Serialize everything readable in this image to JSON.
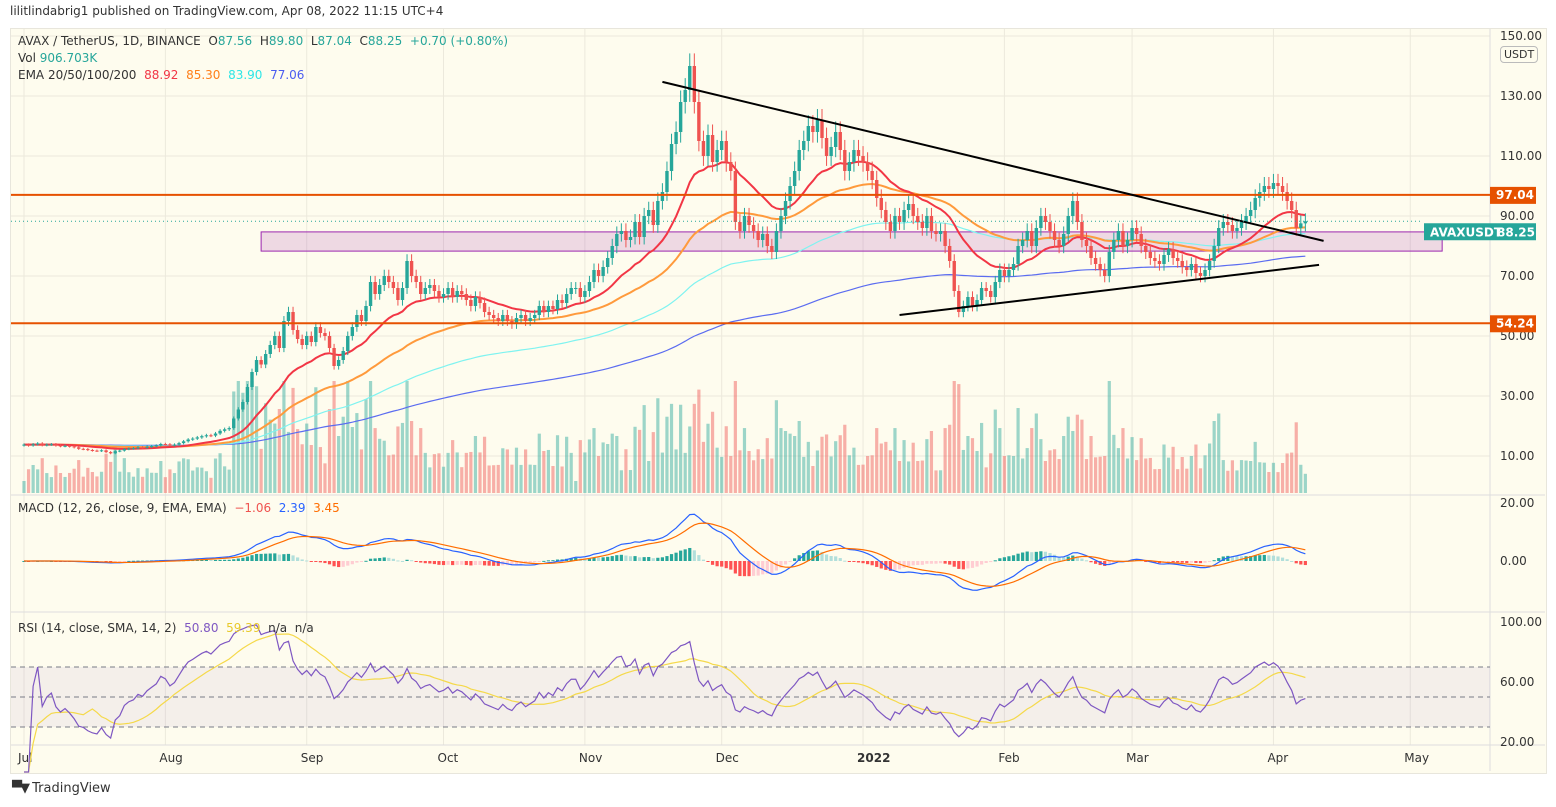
{
  "publish_line": "lilitlindabrig1 published on TradingView.com, Apr 08, 2022 11:15 UTC+4",
  "legend": {
    "symbol": "AVAX / TetherUS, 1D, BINANCE",
    "o_label": "O",
    "o": "87.56",
    "h_label": "H",
    "h": "89.80",
    "l_label": "L",
    "l": "87.04",
    "c_label": "C",
    "c": "88.25",
    "change": "+0.70 (+0.80%)",
    "vol_label": "Vol",
    "vol": "906.703K",
    "ema_label": "EMA 20/50/100/200",
    "ema20": "88.92",
    "ema50": "85.30",
    "ema100": "83.90",
    "ema200": "77.06",
    "macd_label": "MACD (12, 26, close, 9, EMA, EMA)",
    "macd_hist": "−1.06",
    "macd_line": "2.39",
    "macd_signal": "3.45",
    "rsi_label": "RSI (14, close, SMA, 14, 2)",
    "rsi": "50.80",
    "rsi_sma": "59.39",
    "rsi_bb_up": "n/a",
    "rsi_bb_dn": "n/a"
  },
  "currency_button": "USDT",
  "footer_brand": "TradingView",
  "colors": {
    "up": "#26a69a",
    "down": "#ef5350",
    "ema20": "#f23645",
    "ema50": "#ff9a3c",
    "ema100": "#7ff3f0",
    "ema200": "#5b6cf0",
    "macd": "#2962ff",
    "signal": "#ff6d00",
    "rsi": "#7e57c2",
    "rsi_sma": "#f5d94a",
    "level": "#e65100",
    "zone": "#9c27b0",
    "trend": "#000000",
    "accent": "#26a69a"
  },
  "chart_data": {
    "type": "candlestick",
    "symbol": "AVAXUSDT",
    "interval": "1D",
    "scale": "linear",
    "ylim": [
      0,
      150
    ],
    "price_ticks": [
      "150.00",
      "130.00",
      "110.00",
      "90.00",
      "70.00",
      "50.00",
      "30.00",
      "10.00"
    ],
    "x_ticks": [
      "Jul",
      "Aug",
      "Sep",
      "Oct",
      "Nov",
      "Dec",
      "2022",
      "Feb",
      "Mar",
      "Apr",
      "May"
    ],
    "grid": true,
    "last_price": {
      "label": "AVAXUSDT",
      "value": "88.25"
    },
    "closes_by_month": {
      "2021-07": [
        13.8,
        13.5,
        13.9,
        14.2,
        13.6,
        13.8,
        13.9,
        13.5,
        13.3,
        13.4,
        13.2,
        12.9,
        12.4,
        12.3,
        12.0,
        11.8,
        11.7,
        11.9,
        11.3,
        10.9,
        11.6,
        11.8,
        12.3,
        12.5,
        12.6,
        12.9,
        12.8,
        13.1,
        13.3,
        13.5,
        14.0
      ],
      "2021-08": [
        13.9,
        13.6,
        13.8,
        14.3,
        14.9,
        15.5,
        15.8,
        16.2,
        16.6,
        16.9,
        16.8,
        17.5,
        18.4,
        18.9,
        19.3,
        22.5,
        25.5,
        28,
        33,
        38,
        42,
        40.5,
        44,
        47,
        50,
        46,
        55,
        58,
        52,
        49,
        47
      ],
      "2021-09": [
        50,
        48,
        53,
        51,
        50,
        46,
        40,
        42,
        45,
        50,
        53,
        57,
        55,
        60,
        68,
        64,
        67,
        70,
        68,
        66,
        62,
        66,
        75,
        70,
        68,
        64,
        66,
        67,
        65,
        63
      ],
      "2021-10": [
        64,
        66,
        63,
        65,
        64,
        62,
        60,
        63,
        61,
        58,
        57,
        56,
        55,
        57,
        55,
        54,
        56,
        57,
        55,
        56,
        57,
        60,
        58,
        60,
        59,
        62,
        61,
        64,
        66,
        66,
        63
      ],
      "2021-11": [
        65,
        68,
        72,
        70,
        73,
        76,
        80,
        84,
        85,
        82,
        83,
        88,
        83,
        90,
        92,
        87,
        95,
        98,
        105,
        114,
        118,
        128,
        132,
        140,
        128,
        115,
        110,
        117,
        108,
        112
      ],
      "2021-12": [
        115,
        108,
        105,
        88,
        85,
        90,
        87,
        85,
        82,
        84,
        80,
        78,
        85,
        90,
        95,
        100,
        105,
        112,
        115,
        120,
        118,
        122,
        116,
        110,
        113,
        118,
        112,
        105,
        108,
        112,
        110
      ],
      "2022-01": [
        108,
        105,
        102,
        96,
        92,
        88,
        85,
        90,
        88,
        92,
        94,
        90,
        88,
        86,
        90,
        85,
        84,
        85,
        80,
        75,
        65,
        58,
        60,
        63,
        60,
        62,
        66,
        65,
        63,
        68,
        72
      ],
      "2022-02": [
        70,
        72,
        74,
        80,
        82,
        85,
        80,
        86,
        90,
        88,
        85,
        82,
        80,
        84,
        90,
        95,
        88,
        82,
        80,
        76,
        74,
        72,
        70,
        78,
        82,
        85,
        80,
        82
      ],
      "2022-03": [
        86,
        84,
        80,
        78,
        76,
        75,
        74,
        77,
        79,
        76,
        75,
        73,
        72,
        74,
        71,
        70,
        72,
        75,
        80,
        86,
        88,
        87,
        85,
        86,
        88,
        90,
        92,
        96,
        98,
        100,
        99
      ],
      "2022-04": [
        101,
        100,
        98,
        95,
        92,
        86,
        87.55,
        88.25
      ]
    },
    "horizontal_levels": [
      {
        "price": 97.04,
        "label": "97.04"
      },
      {
        "price": 54.24,
        "label": "54.24"
      }
    ],
    "zone": {
      "from": "2021-08-22",
      "to": "2022-05-08",
      "price_low": 78.3,
      "price_high": 84.7
    },
    "trendlines": [
      {
        "from": [
          "2021-11-18",
          134.7
        ],
        "to": [
          "2022-04-12",
          81.7
        ]
      },
      {
        "from": [
          "2022-01-09",
          57.0
        ],
        "to": [
          "2022-04-11",
          73.7
        ]
      }
    ],
    "macd_ticks": [
      "20.00",
      "0.00"
    ],
    "rsi_ticks": [
      "100.00",
      "60.00",
      "20.00"
    ],
    "rsi_bands": [
      70,
      50,
      30
    ]
  }
}
